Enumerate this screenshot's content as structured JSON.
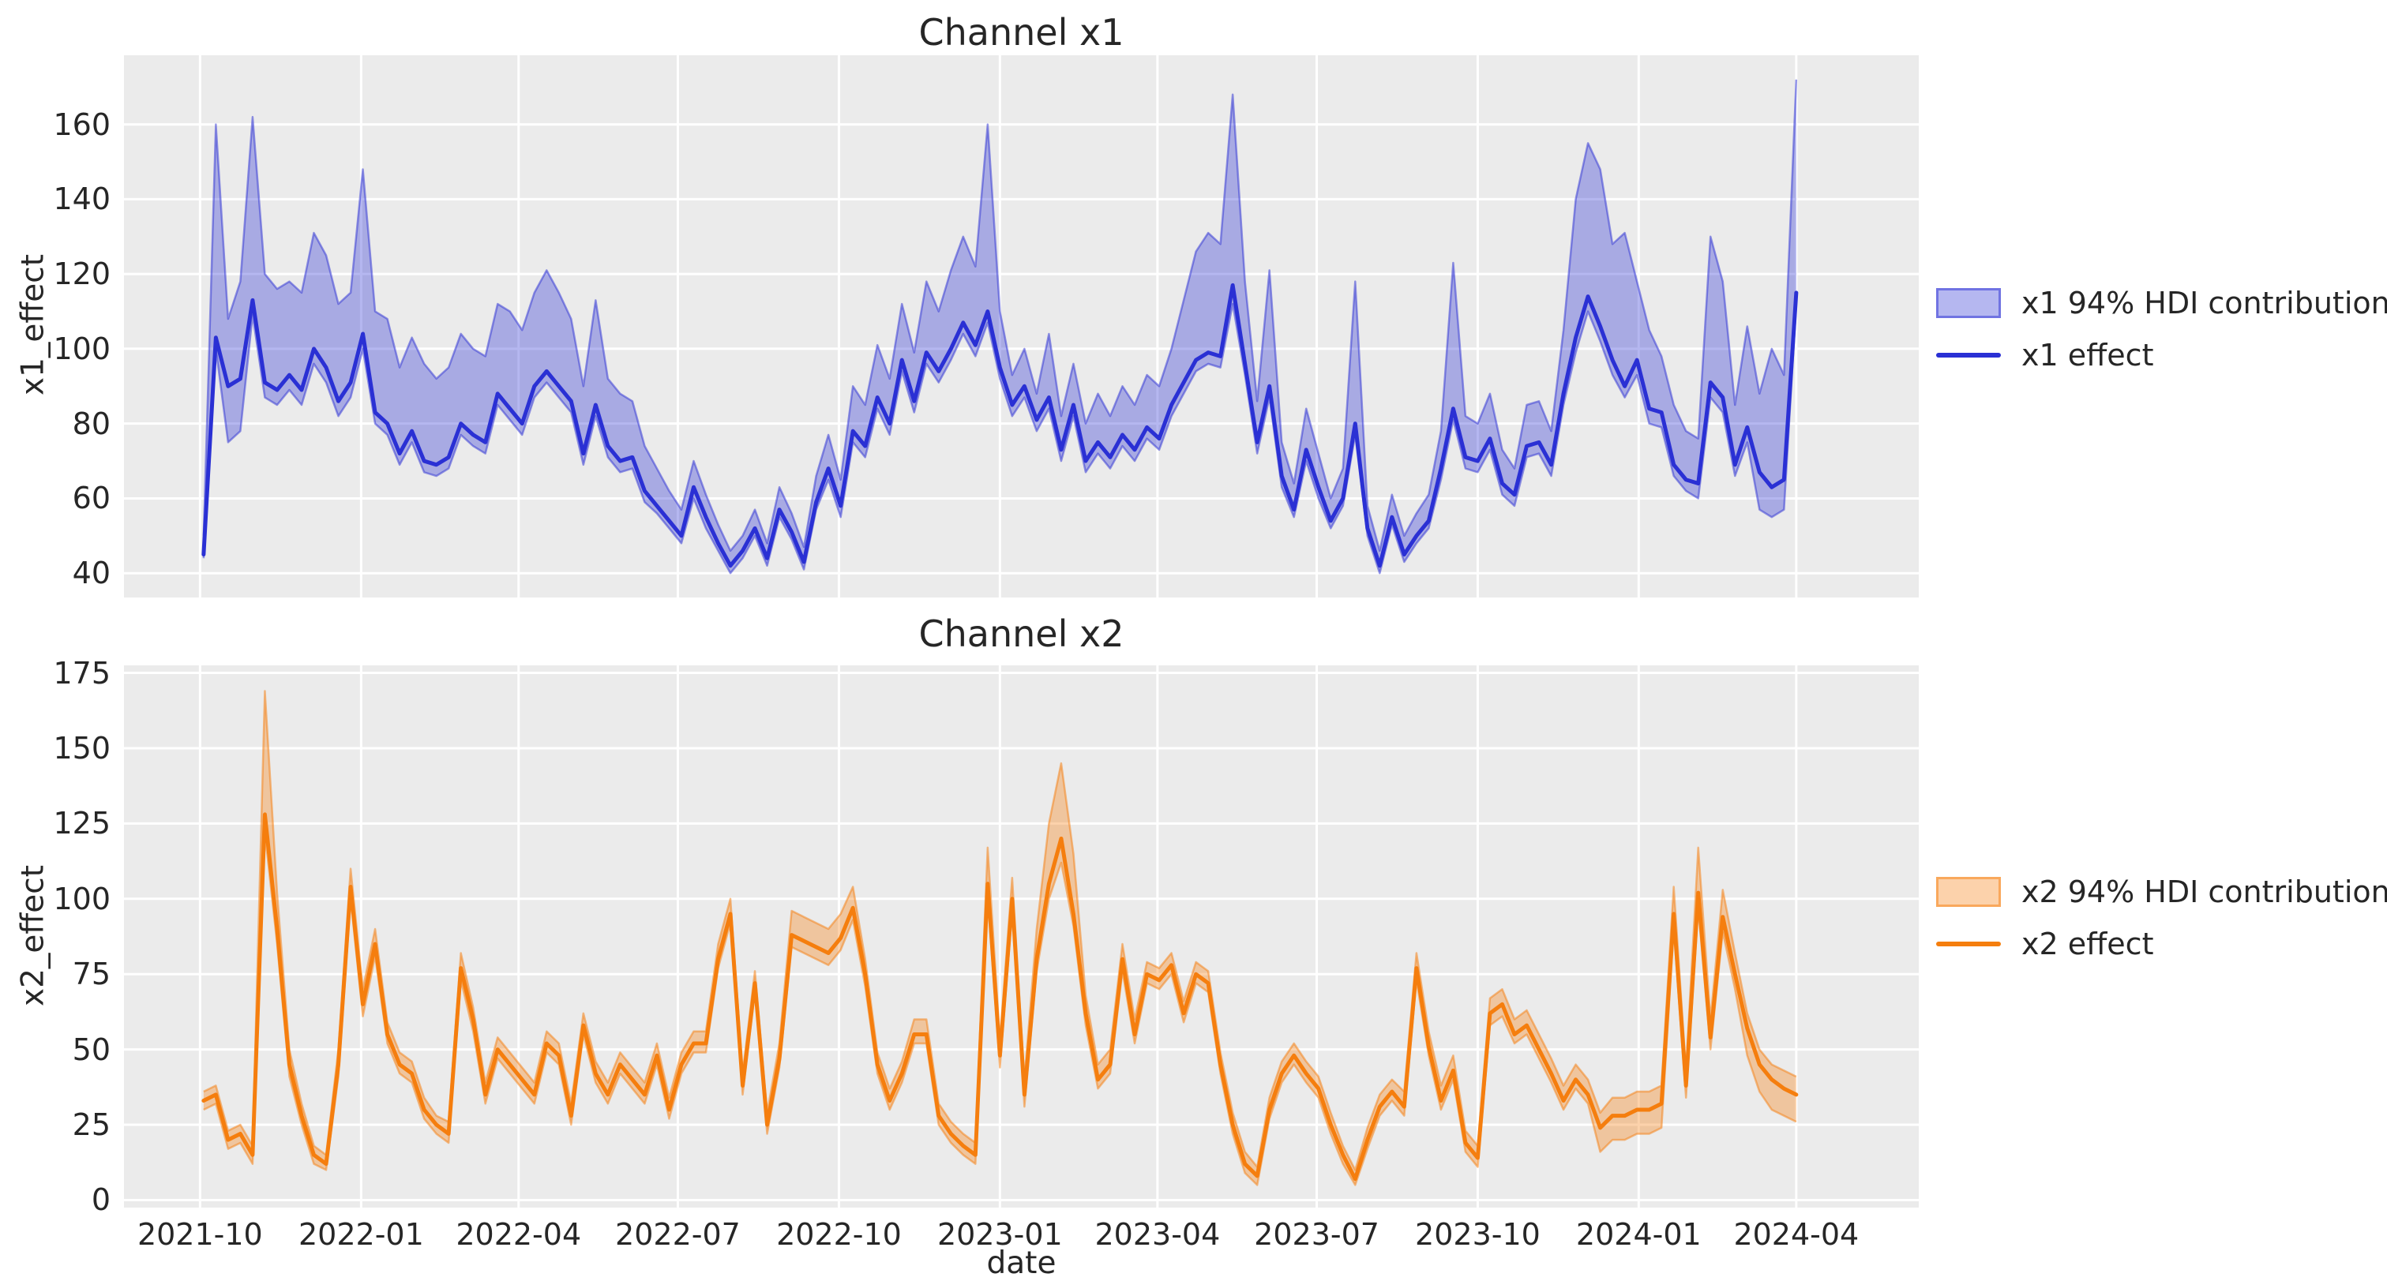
{
  "chart_data": {
    "type": "line",
    "description": "Two stacked time-series subplots of media channel effects with HDI bands",
    "xaxis": {
      "label": "date",
      "unit": "week-index from 2021-10-03, weekly frequency",
      "lim": [
        -6.5,
        140
      ],
      "ticks": [
        {
          "label": "2021-10",
          "week": -0.29
        },
        {
          "label": "2022-01",
          "week": 12.86
        },
        {
          "label": "2022-04",
          "week": 25.71
        },
        {
          "label": "2022-07",
          "week": 38.71
        },
        {
          "label": "2022-10",
          "week": 51.86
        },
        {
          "label": "2023-01",
          "week": 65.0
        },
        {
          "label": "2023-04",
          "week": 77.86
        },
        {
          "label": "2023-07",
          "week": 90.86
        },
        {
          "label": "2023-10",
          "week": 104.0
        },
        {
          "label": "2024-01",
          "week": 117.14
        },
        {
          "label": "2024-04",
          "week": 130.0
        }
      ]
    },
    "style": {
      "axes_bg": "#ebebeb",
      "grid_color": "#ffffff",
      "text_color": "#262626",
      "figure_bg": "#ffffff"
    },
    "charts": [
      {
        "title": "Channel x1",
        "ylabel": "x1_effect",
        "ylim": [
          33.5,
          178.5
        ],
        "yticks": [
          40,
          60,
          80,
          100,
          120,
          140,
          160
        ],
        "show_x_ticklabels": false,
        "line_color": "#2a30d4",
        "band_fill": "rgba(43,48,212,0.35)",
        "band_edge": "rgba(43,48,212,0.5)",
        "legend": {
          "band_label": "x1 94% HDI contribution",
          "line_label": "x1 effect"
        },
        "line": [
          45,
          103,
          90,
          92,
          113,
          91,
          89,
          93,
          89,
          100,
          95,
          86,
          91,
          104,
          83,
          80,
          72,
          78,
          70,
          69,
          71,
          80,
          77,
          75,
          88,
          84,
          80,
          90,
          94,
          90,
          86,
          72,
          85,
          74,
          70,
          71,
          62,
          58,
          54,
          50,
          63,
          55,
          48,
          42,
          46,
          52,
          44,
          57,
          51,
          43,
          59,
          68,
          58,
          78,
          74,
          87,
          80,
          97,
          86,
          99,
          94,
          100,
          107,
          101,
          110,
          95,
          85,
          90,
          81,
          87,
          73,
          85,
          70,
          75,
          71,
          77,
          73,
          79,
          76,
          85,
          91,
          97,
          99,
          98,
          117,
          96,
          75,
          90,
          66,
          57,
          73,
          63,
          54,
          60,
          80,
          52,
          42,
          55,
          45,
          50,
          54,
          68,
          84,
          71,
          70,
          76,
          64,
          61,
          74,
          75,
          69,
          88,
          103,
          114,
          106,
          97,
          90,
          97,
          84,
          83,
          69,
          65,
          64,
          91,
          87,
          69,
          79,
          67,
          63,
          65,
          115
        ],
        "upper": [
          50,
          160,
          108,
          118,
          162,
          120,
          116,
          118,
          115,
          131,
          125,
          112,
          115,
          148,
          110,
          108,
          95,
          103,
          96,
          92,
          95,
          104,
          100,
          98,
          112,
          110,
          105,
          115,
          121,
          115,
          108,
          90,
          113,
          92,
          88,
          86,
          74,
          68,
          62,
          57,
          70,
          61,
          53,
          46,
          50,
          57,
          48,
          63,
          56,
          47,
          66,
          77,
          65,
          90,
          85,
          101,
          92,
          112,
          99,
          118,
          110,
          121,
          130,
          122,
          160,
          110,
          93,
          100,
          88,
          104,
          82,
          96,
          80,
          88,
          82,
          90,
          85,
          93,
          90,
          100,
          113,
          126,
          131,
          128,
          168,
          118,
          86,
          121,
          75,
          64,
          84,
          72,
          60,
          68,
          118,
          58,
          46,
          61,
          50,
          56,
          61,
          78,
          123,
          82,
          80,
          88,
          73,
          68,
          85,
          86,
          78,
          105,
          140,
          155,
          148,
          128,
          131,
          118,
          105,
          98,
          85,
          78,
          76,
          130,
          118,
          85,
          106,
          88,
          100,
          93,
          172
        ],
        "lower": [
          44,
          100,
          75,
          78,
          109,
          87,
          85,
          89,
          85,
          96,
          91,
          82,
          87,
          100,
          80,
          77,
          69,
          75,
          67,
          66,
          68,
          77,
          74,
          72,
          85,
          81,
          77,
          87,
          91,
          87,
          83,
          69,
          82,
          71,
          67,
          68,
          59,
          56,
          52,
          48,
          60,
          52,
          46,
          40,
          44,
          50,
          42,
          55,
          49,
          41,
          57,
          65,
          55,
          75,
          71,
          84,
          77,
          94,
          83,
          96,
          91,
          97,
          104,
          98,
          107,
          92,
          82,
          87,
          78,
          84,
          70,
          82,
          67,
          72,
          68,
          74,
          70,
          76,
          73,
          82,
          88,
          94,
          96,
          95,
          112,
          93,
          72,
          87,
          63,
          55,
          70,
          60,
          52,
          58,
          77,
          50,
          40,
          53,
          43,
          48,
          52,
          65,
          81,
          68,
          67,
          73,
          61,
          58,
          71,
          72,
          66,
          85,
          99,
          110,
          102,
          93,
          87,
          93,
          80,
          79,
          66,
          62,
          60,
          87,
          83,
          66,
          75,
          57,
          55,
          57,
          112
        ]
      },
      {
        "title": "Channel x2",
        "ylabel": "x2_effect",
        "ylim": [
          -2.5,
          177.5
        ],
        "yticks": [
          0,
          25,
          50,
          75,
          100,
          125,
          150,
          175
        ],
        "show_x_ticklabels": true,
        "line_color": "#f57e0e",
        "band_fill": "rgba(245,126,14,0.35)",
        "band_edge": "rgba(245,126,14,0.5)",
        "legend": {
          "band_label": "x2 94% HDI contribution",
          "line_label": "x2 effect"
        },
        "line": [
          33,
          35,
          20,
          22,
          15,
          128,
          90,
          45,
          28,
          15,
          12,
          45,
          104,
          65,
          85,
          55,
          45,
          42,
          30,
          25,
          22,
          77,
          60,
          35,
          50,
          45,
          40,
          35,
          52,
          48,
          28,
          58,
          42,
          35,
          45,
          40,
          35,
          48,
          30,
          45,
          52,
          52,
          80,
          95,
          38,
          72,
          25,
          47,
          88,
          86,
          84,
          82,
          87,
          97,
          75,
          45,
          33,
          42,
          55,
          55,
          28,
          22,
          18,
          15,
          105,
          48,
          100,
          35,
          80,
          105,
          120,
          95,
          62,
          40,
          45,
          80,
          55,
          75,
          73,
          78,
          62,
          75,
          72,
          45,
          25,
          12,
          8,
          30,
          42,
          48,
          42,
          37,
          25,
          15,
          7,
          20,
          31,
          36,
          31,
          77,
          51,
          33,
          43,
          19,
          14,
          62,
          65,
          55,
          58,
          50,
          42,
          33,
          40,
          35,
          24,
          28,
          28,
          30,
          30,
          32,
          95,
          38,
          102,
          54,
          94,
          75,
          57,
          45,
          40,
          37,
          35
        ],
        "upper": [
          36,
          38,
          23,
          25,
          18,
          169,
          102,
          50,
          32,
          18,
          15,
          50,
          110,
          70,
          90,
          59,
          49,
          46,
          34,
          28,
          26,
          82,
          64,
          39,
          54,
          49,
          44,
          39,
          56,
          52,
          32,
          62,
          46,
          39,
          49,
          44,
          39,
          52,
          34,
          49,
          56,
          56,
          85,
          100,
          42,
          76,
          29,
          52,
          96,
          94,
          92,
          90,
          95,
          104,
          80,
          49,
          37,
          46,
          60,
          60,
          32,
          26,
          22,
          19,
          117,
          53,
          107,
          40,
          90,
          125,
          145,
          115,
          68,
          45,
          50,
          85,
          60,
          79,
          77,
          82,
          66,
          79,
          76,
          49,
          29,
          16,
          11,
          34,
          46,
          52,
          46,
          41,
          29,
          18,
          10,
          24,
          35,
          40,
          36,
          82,
          56,
          38,
          48,
          23,
          18,
          67,
          70,
          60,
          63,
          55,
          47,
          38,
          45,
          40,
          29,
          34,
          34,
          36,
          36,
          38,
          104,
          43,
          117,
          60,
          103,
          82,
          62,
          50,
          45,
          43,
          41
        ],
        "lower": [
          30,
          32,
          17,
          19,
          12,
          122,
          85,
          41,
          25,
          12,
          10,
          41,
          100,
          61,
          81,
          52,
          42,
          39,
          27,
          22,
          19,
          73,
          56,
          32,
          47,
          42,
          37,
          32,
          49,
          45,
          25,
          55,
          39,
          32,
          42,
          37,
          32,
          45,
          27,
          42,
          49,
          49,
          77,
          92,
          35,
          69,
          22,
          44,
          84,
          82,
          80,
          78,
          83,
          93,
          71,
          42,
          30,
          39,
          52,
          52,
          25,
          19,
          15,
          12,
          101,
          44,
          96,
          31,
          76,
          100,
          112,
          91,
          58,
          37,
          42,
          76,
          52,
          72,
          70,
          75,
          59,
          72,
          69,
          42,
          22,
          9,
          5,
          27,
          39,
          45,
          39,
          34,
          22,
          12,
          5,
          17,
          28,
          33,
          28,
          73,
          48,
          30,
          40,
          16,
          11,
          58,
          61,
          52,
          55,
          47,
          39,
          30,
          37,
          32,
          16,
          20,
          20,
          22,
          22,
          24,
          90,
          34,
          97,
          50,
          89,
          70,
          48,
          36,
          30,
          28,
          26
        ]
      }
    ]
  }
}
